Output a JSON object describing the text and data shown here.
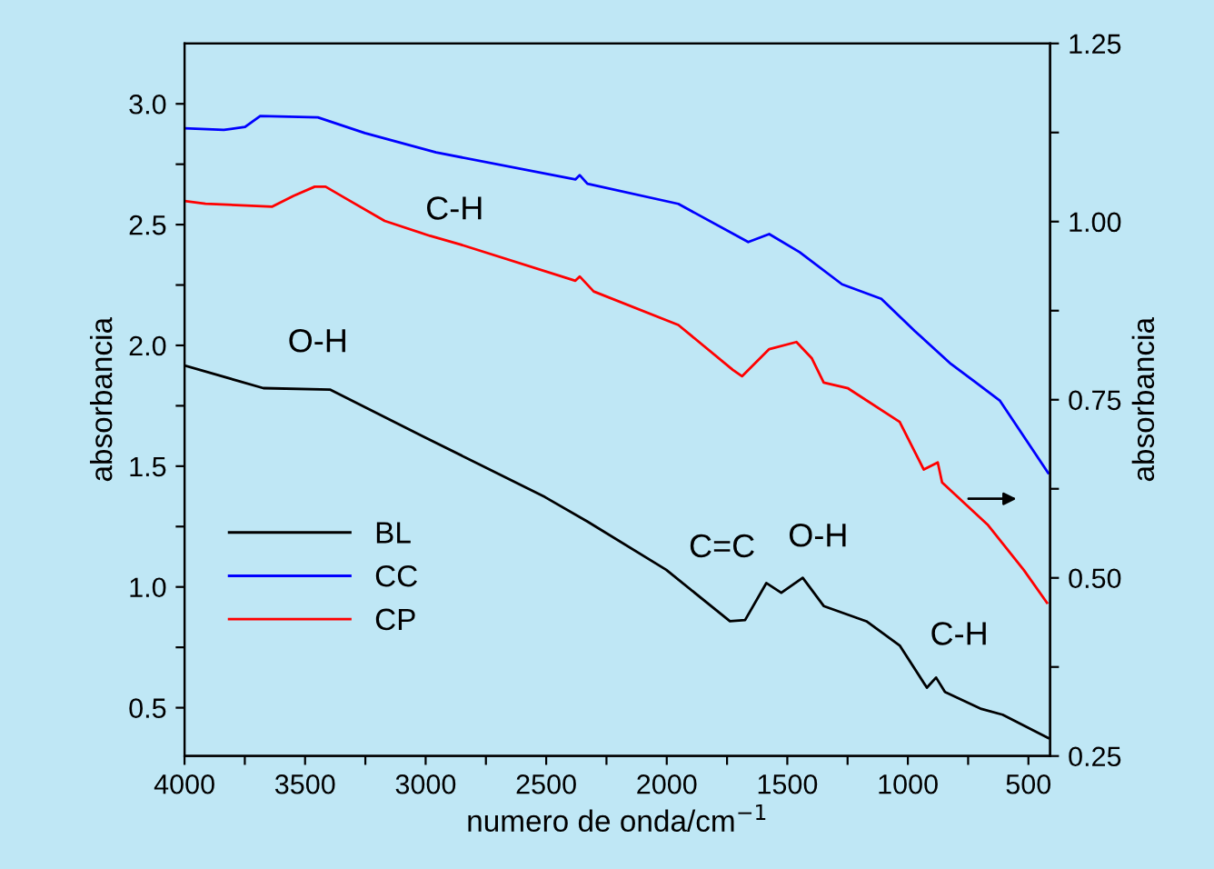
{
  "chart_data": {
    "type": "line",
    "xlabel": "numero de onda/cm$^{−1}$",
    "ylabel": "absorbancia",
    "y2label": "absorbancia",
    "xlim": [
      4000,
      410
    ],
    "ylim": [
      0.3,
      3.25
    ],
    "y2lim": [
      0.25,
      1.25
    ],
    "xticks": [
      4000,
      {
        "value": 3750,
        "label": null
      },
      3500,
      {
        "value": 3250,
        "label": null
      },
      3000,
      {
        "value": 2750,
        "label": null
      },
      2500,
      {
        "value": 2250,
        "label": null
      },
      2000,
      {
        "value": 1750,
        "label": null
      },
      1500,
      {
        "value": 1250,
        "label": null
      },
      1000,
      {
        "value": 750,
        "label": null
      },
      500
    ],
    "yticks": [
      {
        "value": 0.5,
        "label": "0.5"
      },
      {
        "value": 0.75,
        "label": null
      },
      {
        "value": 1.0,
        "label": "1.0"
      },
      {
        "value": 1.25,
        "label": null
      },
      {
        "value": 1.5,
        "label": "1.5"
      },
      {
        "value": 1.75,
        "label": null
      },
      {
        "value": 2.0,
        "label": "2.0"
      },
      {
        "value": 2.25,
        "label": null
      },
      {
        "value": 2.5,
        "label": "2.5"
      },
      {
        "value": 2.75,
        "label": null
      },
      {
        "value": 3.0,
        "label": "3.0"
      }
    ],
    "y2ticks": [
      {
        "value": 0.25,
        "label": "0.25"
      },
      {
        "value": 0.375,
        "label": null
      },
      {
        "value": 0.5,
        "label": "0.50"
      },
      {
        "value": 0.625,
        "label": null
      },
      {
        "value": 0.75,
        "label": "0.75"
      },
      {
        "value": 0.875,
        "label": null
      },
      {
        "value": 1.0,
        "label": "1.00"
      },
      {
        "value": 1.125,
        "label": null
      },
      {
        "value": 1.25,
        "label": "1.25"
      }
    ],
    "grid": false,
    "legend": "bottom left",
    "marker": "none",
    "line_style": "solid",
    "series": [
      {
        "name": "BL",
        "color": "#000000",
        "x": [
          4000,
          3673,
          3397,
          3008,
          2505,
          2329,
          2002,
          1738,
          1675,
          1587,
          1525,
          1436,
          1349,
          1172,
          1034,
          921,
          883,
          846,
          695,
          607,
          418
        ],
        "values": [
          1.917,
          1.823,
          1.817,
          1.622,
          1.372,
          1.271,
          1.071,
          0.858,
          0.863,
          1.016,
          0.976,
          1.038,
          0.921,
          0.858,
          0.758,
          0.583,
          0.625,
          0.565,
          0.495,
          0.471,
          0.375
        ]
      },
      {
        "name": "CC",
        "color": "#0000ff",
        "x": [
          4000,
          3837,
          3749,
          3686,
          3447,
          3252,
          2957,
          2379,
          2361,
          2329,
          1952,
          1662,
          1575,
          1449,
          1273,
          1110,
          972,
          821,
          720,
          619,
          418
        ],
        "values": [
          2.899,
          2.892,
          2.904,
          2.95,
          2.944,
          2.879,
          2.799,
          2.687,
          2.705,
          2.669,
          2.586,
          2.428,
          2.461,
          2.386,
          2.253,
          2.193,
          2.06,
          1.923,
          1.848,
          1.772,
          1.472
        ]
      },
      {
        "name": "CP",
        "color": "#ff0000",
        "axis": "y2",
        "x": [
          4000,
          3913,
          3636,
          3548,
          3460,
          3415,
          3334,
          3170,
          2982,
          2857,
          2379,
          2361,
          2303,
          1952,
          1726,
          1688,
          1575,
          1462,
          1398,
          1349,
          1248,
          1034,
          934,
          876,
          858,
          670,
          519,
          423
        ],
        "values": [
          1.029,
          1.025,
          1.021,
          1.036,
          1.049,
          1.049,
          1.033,
          1.001,
          0.98,
          0.968,
          0.917,
          0.923,
          0.902,
          0.855,
          0.792,
          0.783,
          0.821,
          0.831,
          0.808,
          0.774,
          0.766,
          0.719,
          0.652,
          0.662,
          0.634,
          0.575,
          0.511,
          0.465
        ]
      }
    ],
    "annotations": [
      "O-H",
      "C-H",
      "C=C",
      "O-H",
      "C-H"
    ]
  }
}
